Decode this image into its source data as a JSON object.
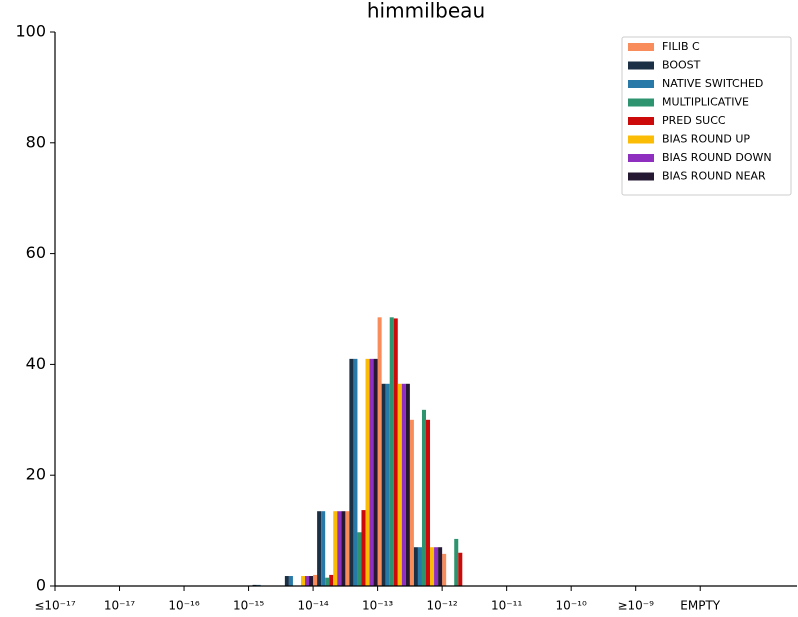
{
  "chart_data": {
    "type": "histogram",
    "title": "himmilbeau",
    "bins": [
      3,
      3.5,
      4,
      4.5,
      5,
      5.5,
      6,
      6.5
    ],
    "series": [
      {
        "name": "FILIB C",
        "color": "#f98c5b",
        "values": [
          0,
          0,
          2,
          13.5,
          48.5,
          30,
          5.8
        ]
      },
      {
        "name": "BOOST",
        "color": "#1b2f45",
        "values": [
          0.2,
          1.8,
          13.5,
          41,
          36.5,
          7,
          0
        ]
      },
      {
        "name": "NATIVE SWITCHED",
        "color": "#2878a8",
        "values": [
          0.2,
          1.8,
          13.5,
          41,
          36.5,
          7,
          0
        ]
      },
      {
        "name": "MULTIPLICATIVE",
        "color": "#2e9470",
        "values": [
          0,
          0,
          1.5,
          9.7,
          48.5,
          31.8,
          8.5
        ]
      },
      {
        "name": "PRED SUCC",
        "color": "#cc0a0a",
        "values": [
          0,
          0,
          2,
          13.7,
          48.3,
          30,
          6
        ]
      },
      {
        "name": "BIAS ROUND UP",
        "color": "#fbbc05",
        "values": [
          0,
          1.8,
          13.5,
          41,
          36.5,
          7,
          0
        ]
      },
      {
        "name": "BIAS ROUND DOWN",
        "color": "#8f2fbf",
        "values": [
          0,
          1.8,
          13.5,
          41,
          36.5,
          7,
          0
        ]
      },
      {
        "name": "BIAS ROUND NEAR",
        "color": "#241832",
        "values": [
          0,
          1.8,
          13.5,
          41,
          36.5,
          7,
          0
        ]
      }
    ],
    "xlim": [
      0,
      11.5
    ],
    "xticks": [
      {
        "value": 0,
        "label": "≤10⁻¹⁷"
      },
      {
        "value": 1,
        "label": "10⁻¹⁷"
      },
      {
        "value": 2,
        "label": "10⁻¹⁶"
      },
      {
        "value": 3,
        "label": "10⁻¹⁵"
      },
      {
        "value": 4,
        "label": "10⁻¹⁴"
      },
      {
        "value": 5,
        "label": "10⁻¹³"
      },
      {
        "value": 6,
        "label": "10⁻¹²"
      },
      {
        "value": 7,
        "label": "10⁻¹¹"
      },
      {
        "value": 8,
        "label": "10⁻¹⁰"
      },
      {
        "value": 9,
        "label": "≥10⁻⁹"
      },
      {
        "value": 10,
        "label": "EMPTY"
      }
    ],
    "ylim": [
      0,
      100
    ],
    "yticks": [
      0,
      20,
      40,
      60,
      80,
      100
    ],
    "legend": "upper right"
  }
}
